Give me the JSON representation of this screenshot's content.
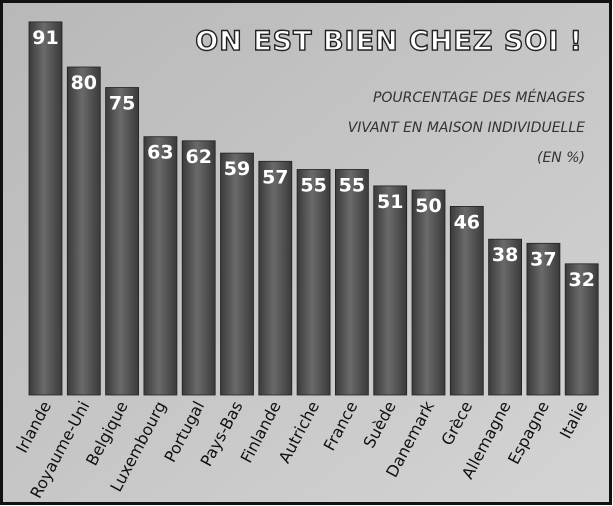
{
  "chart_data": {
    "type": "bar",
    "title": "ON EST BIEN CHEZ SOI !",
    "subtitle": [
      "POURCENTAGE DES MÉNAGES",
      "VIVANT EN MAISON INDIVIDUELLE",
      "(EN %)"
    ],
    "categories": [
      "Irlande",
      "Royaume-Uni",
      "Belgique",
      "Luxembourg",
      "Portugal",
      "Pays-Bas",
      "Finlande",
      "Autriche",
      "France",
      "Suède",
      "Danemark",
      "Grèce",
      "Allemagne",
      "Espagne",
      "Italie"
    ],
    "values": [
      91,
      80,
      75,
      63,
      62,
      59,
      57,
      55,
      55,
      51,
      50,
      46,
      38,
      37,
      32
    ],
    "color": "#3a3a3a"
  }
}
